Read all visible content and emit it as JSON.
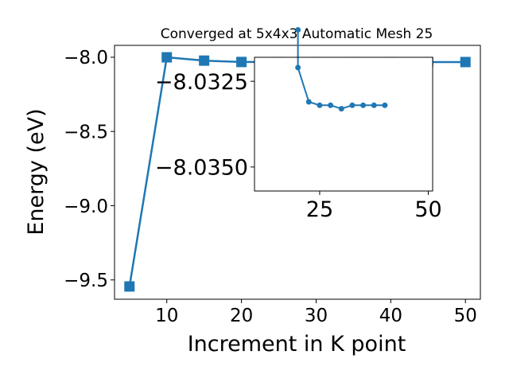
{
  "chart_data": [
    {
      "type": "line",
      "title": "Converged at 5x4x3 Automatic Mesh 25",
      "xlabel": "Increment in K point",
      "ylabel": "Energy (eV)",
      "xlim": [
        3,
        52
      ],
      "ylim": [
        -9.63,
        -7.92
      ],
      "x_ticks": [
        10,
        20,
        30,
        40,
        50
      ],
      "x_tick_labels": [
        "10",
        "20",
        "30",
        "40",
        "50"
      ],
      "y_ticks": [
        -8.0,
        -8.5,
        -9.0,
        -9.5
      ],
      "y_tick_labels": [
        "−8.0",
        "−8.5",
        "−9.0",
        "−9.5"
      ],
      "marker": "square",
      "color": "#1f77b4",
      "grid": false,
      "series": [
        {
          "x": [
            5,
            10,
            15,
            20,
            25,
            30,
            35,
            40,
            45,
            50
          ],
          "y": [
            -9.544,
            -8.0005,
            -8.0228,
            -8.0319,
            -8.0323,
            -8.0323,
            -8.0324,
            -8.0323,
            -8.0324,
            -8.0324
          ]
        }
      ]
    },
    {
      "type": "line",
      "title": "",
      "xlabel": "",
      "ylabel": "",
      "xlim": [
        10,
        51
      ],
      "ylim": [
        -8.0357,
        -8.0318
      ],
      "x_ticks": [
        25,
        50
      ],
      "x_tick_labels": [
        "25",
        "50"
      ],
      "y_ticks": [
        -8.035,
        -8.0325
      ],
      "y_tick_labels": [
        "−8.0350",
        "−8.0325"
      ],
      "marker": "circle",
      "color": "#1f77b4",
      "grid": false,
      "series": [
        {
          "x": [
            20,
            20,
            22.5,
            25,
            27.5,
            30,
            32.5,
            35,
            37.5,
            40
          ],
          "y": [
            -8.031,
            -8.0321,
            -8.0331,
            -8.0332,
            -8.0332,
            -8.0333,
            -8.0332,
            -8.0332,
            -8.0332,
            -8.0332
          ]
        }
      ]
    }
  ]
}
